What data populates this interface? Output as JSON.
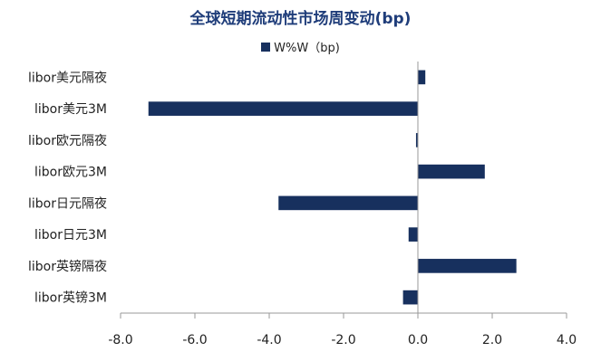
{
  "chart_data": {
    "type": "bar",
    "orientation": "horizontal",
    "title": "全球短期流动性市场周变动(bp)",
    "categories": [
      "libor美元隔夜",
      "libor美元3M",
      "libor欧元隔夜",
      "libor欧元3M",
      "libor日元隔夜",
      "libor日元3M",
      "libor英镑隔夜",
      "libor英镑3M"
    ],
    "series": [
      {
        "name": "W%W（bp)",
        "values": [
          0.2,
          -7.25,
          -0.05,
          1.8,
          -3.75,
          -0.25,
          2.65,
          -0.4
        ]
      }
    ],
    "xlim": [
      -8.0,
      4.0
    ],
    "x_ticks": [
      "-8.0",
      "-6.0",
      "-4.0",
      "-2.0",
      "0.0",
      "2.0",
      "4.0"
    ],
    "grid": false,
    "legend_position": "top"
  },
  "colors": {
    "bar": "#17305e",
    "axis": "#999999"
  }
}
